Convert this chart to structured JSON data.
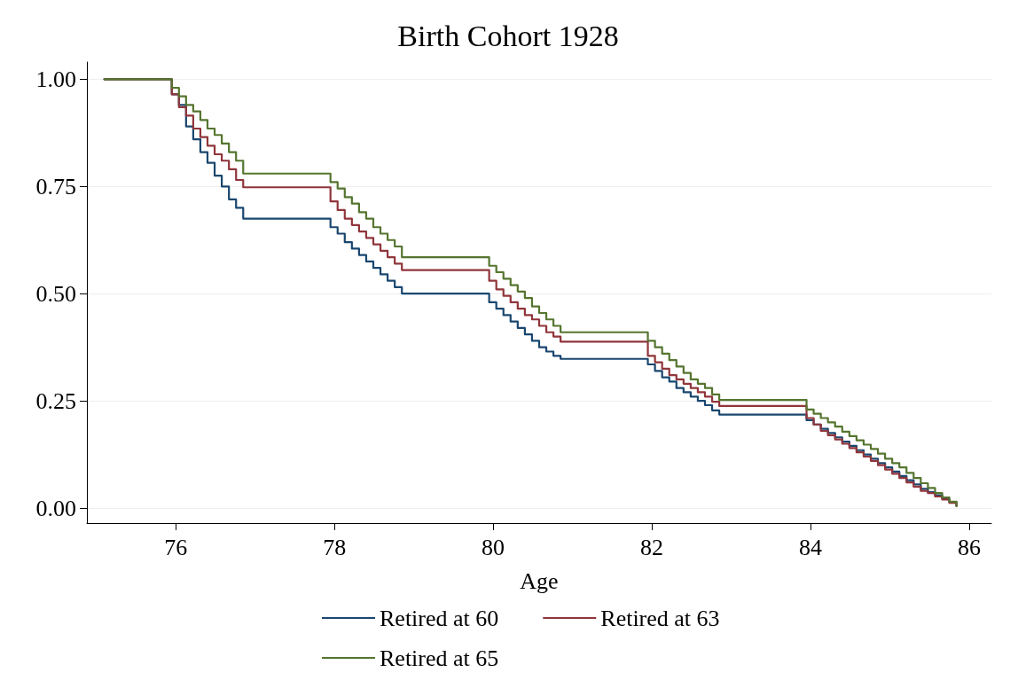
{
  "chart_data": {
    "type": "step",
    "title": "Birth Cohort 1928",
    "xlabel": "Age",
    "x": [
      75.1,
      75.95,
      76.04,
      76.13,
      76.22,
      76.31,
      76.4,
      76.49,
      76.58,
      76.67,
      76.76,
      76.85,
      77.95,
      78.04,
      78.13,
      78.22,
      78.31,
      78.4,
      78.49,
      78.58,
      78.67,
      78.76,
      78.85,
      79.95,
      80.04,
      80.13,
      80.22,
      80.31,
      80.4,
      80.49,
      80.58,
      80.67,
      80.76,
      80.85,
      81.95,
      82.04,
      82.13,
      82.22,
      82.31,
      82.4,
      82.49,
      82.58,
      82.67,
      82.76,
      82.85,
      83.95,
      84.04,
      84.13,
      84.22,
      84.31,
      84.4,
      84.49,
      84.58,
      84.67,
      84.76,
      84.85,
      84.94,
      85.03,
      85.12,
      85.21,
      85.3,
      85.39,
      85.48,
      85.57,
      85.66,
      85.75,
      85.84
    ],
    "series": [
      {
        "name": "Retired at 60",
        "color": "#1a476f",
        "values": [
          1.0,
          0.965,
          0.94,
          0.89,
          0.86,
          0.83,
          0.805,
          0.775,
          0.75,
          0.72,
          0.7,
          0.675,
          0.655,
          0.64,
          0.62,
          0.605,
          0.59,
          0.575,
          0.56,
          0.545,
          0.53,
          0.515,
          0.5,
          0.48,
          0.465,
          0.45,
          0.435,
          0.42,
          0.405,
          0.39,
          0.375,
          0.365,
          0.355,
          0.348,
          0.335,
          0.32,
          0.305,
          0.295,
          0.28,
          0.27,
          0.26,
          0.25,
          0.24,
          0.228,
          0.218,
          0.205,
          0.195,
          0.185,
          0.175,
          0.165,
          0.155,
          0.145,
          0.135,
          0.125,
          0.115,
          0.105,
          0.095,
          0.085,
          0.075,
          0.065,
          0.055,
          0.045,
          0.037,
          0.03,
          0.022,
          0.014,
          0.005
        ]
      },
      {
        "name": "Retired at 63",
        "color": "#90353b",
        "values": [
          1.0,
          0.965,
          0.935,
          0.915,
          0.885,
          0.865,
          0.845,
          0.825,
          0.81,
          0.79,
          0.765,
          0.748,
          0.715,
          0.695,
          0.675,
          0.66,
          0.645,
          0.63,
          0.615,
          0.6,
          0.585,
          0.57,
          0.555,
          0.53,
          0.51,
          0.495,
          0.48,
          0.465,
          0.45,
          0.44,
          0.425,
          0.41,
          0.4,
          0.388,
          0.355,
          0.34,
          0.325,
          0.31,
          0.3,
          0.29,
          0.28,
          0.27,
          0.26,
          0.248,
          0.238,
          0.21,
          0.195,
          0.18,
          0.17,
          0.16,
          0.15,
          0.14,
          0.13,
          0.12,
          0.11,
          0.1,
          0.09,
          0.08,
          0.07,
          0.06,
          0.05,
          0.04,
          0.035,
          0.027,
          0.02,
          0.012,
          0.005
        ]
      },
      {
        "name": "Retired at 65",
        "color": "#55752f",
        "values": [
          1.0,
          0.98,
          0.96,
          0.94,
          0.925,
          0.905,
          0.885,
          0.87,
          0.85,
          0.83,
          0.81,
          0.78,
          0.76,
          0.745,
          0.725,
          0.71,
          0.69,
          0.675,
          0.655,
          0.64,
          0.625,
          0.61,
          0.585,
          0.565,
          0.55,
          0.535,
          0.52,
          0.505,
          0.49,
          0.47,
          0.455,
          0.44,
          0.425,
          0.41,
          0.39,
          0.375,
          0.36,
          0.345,
          0.33,
          0.315,
          0.3,
          0.29,
          0.28,
          0.265,
          0.252,
          0.23,
          0.22,
          0.21,
          0.2,
          0.19,
          0.178,
          0.168,
          0.158,
          0.148,
          0.138,
          0.127,
          0.115,
          0.105,
          0.095,
          0.082,
          0.07,
          0.058,
          0.047,
          0.035,
          0.025,
          0.015,
          0.005
        ]
      }
    ],
    "xlim": [
      74.88,
      86.28
    ],
    "xticks": [
      76,
      78,
      80,
      82,
      84,
      86
    ],
    "ylim": [
      -0.035,
      1.04
    ],
    "yticks": [
      {
        "value": 0,
        "label": "0.00"
      },
      {
        "value": 0.25,
        "label": "0.25"
      },
      {
        "value": 0.5,
        "label": "0.50"
      },
      {
        "value": 0.75,
        "label": "0.75"
      },
      {
        "value": 1,
        "label": "1.00"
      }
    ],
    "grid": "y",
    "legend": "bottom",
    "marker": "none",
    "line_style": "solid"
  }
}
